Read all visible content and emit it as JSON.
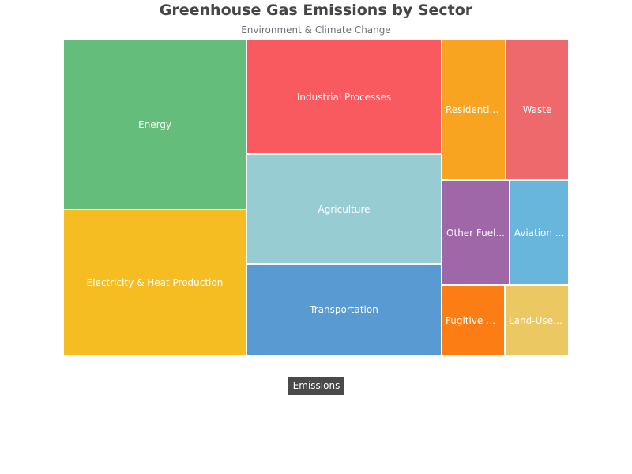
{
  "chart_data": {
    "type": "treemap",
    "title": "Greenhouse Gas Emissions by Sector",
    "subtitle": "Environment & Climate Change",
    "root": "Emissions",
    "categories": [
      "Energy",
      "Electricity & Heat Production",
      "Industrial Processes",
      "Agriculture",
      "Transportation",
      "Residential & Commercial",
      "Waste",
      "Other Fuel Combustion",
      "Aviation",
      "Fugitive Emissions",
      "Land-Use Change"
    ],
    "labels": [
      "Energy",
      "Electricity & Heat Production",
      "Industrial Processes",
      "Agriculture",
      "Transportation",
      "Residentia...",
      "Waste",
      "Other Fuel...",
      "Aviation ...",
      "Fugitive E...",
      "Land-Use ..."
    ],
    "values": [
      35,
      30,
      15,
      15,
      13,
      6,
      6,
      5,
      3,
      2.5,
      2.5
    ],
    "colors": [
      "#65bd7b",
      "#f5bd22",
      "#f85a60",
      "#98ccd3",
      "#5a9ad2",
      "#f9a420",
      "#ee696c",
      "#a067a8",
      "#68b6dc",
      "#fb7d13",
      "#ebc862"
    ]
  }
}
